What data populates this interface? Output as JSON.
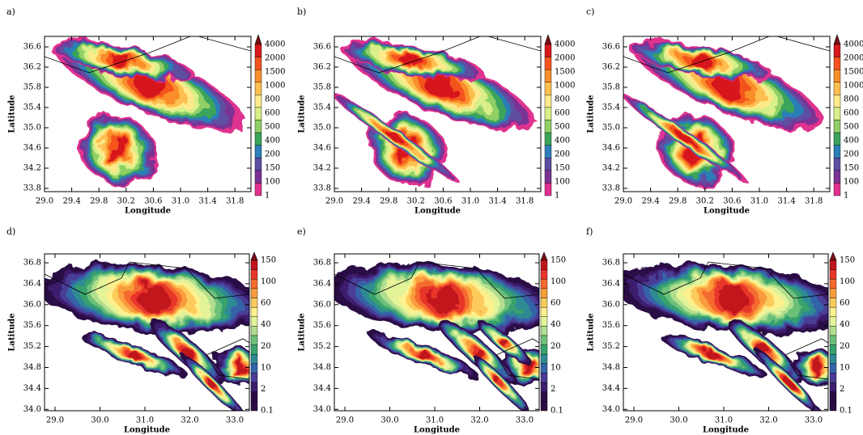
{
  "panels": [
    {
      "label": "a)"
    },
    {
      "label": "b)"
    },
    {
      "label": "c)"
    },
    {
      "label": "d)"
    },
    {
      "label": "e)"
    },
    {
      "label": "f)"
    }
  ],
  "top_axes": {
    "xlabel": "Longitude",
    "ylabel": "Latitude",
    "xticks": [
      "29.0",
      "29.4",
      "29.8",
      "30.2",
      "30.6",
      "31.0",
      "31.4",
      "31.8"
    ],
    "yticks": [
      "36.6",
      "36.2",
      "35.8",
      "35.4",
      "35.0",
      "34.6",
      "34.2",
      "33.8"
    ],
    "colorbar": [
      "4000",
      "2000",
      "1500",
      "1000",
      "800",
      "600",
      "500",
      "400",
      "200",
      "150",
      "100",
      "1"
    ]
  },
  "bottom_axes": {
    "xlabel": "Longitude",
    "ylabel": "Latitude",
    "xticks": [
      "29.0",
      "30.0",
      "31.0",
      "32.0",
      "33.0"
    ],
    "yticks": [
      "36.8",
      "36.4",
      "36.0",
      "35.6",
      "35.2",
      "34.8",
      "34.4",
      "34.0"
    ],
    "colorbar": [
      "150",
      "100",
      "60",
      "40",
      "20",
      "10",
      "2",
      "0.1"
    ]
  }
}
